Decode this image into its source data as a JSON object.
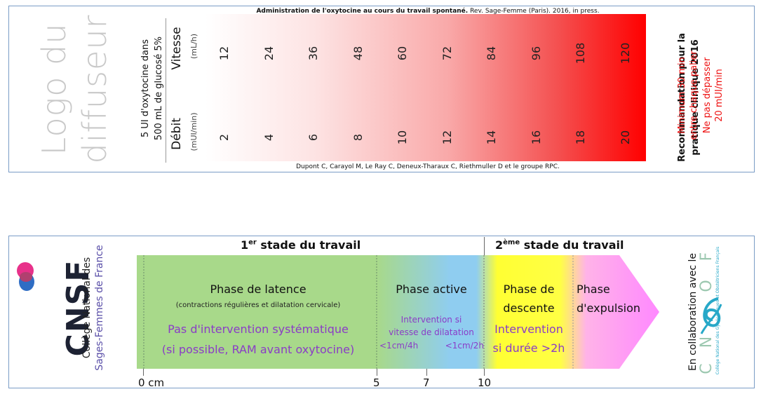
{
  "top_ruler": {
    "header_bold": "Administration de l'oxytocine au cours du travail spontané.",
    "header_rest": " Rev. Sage-Femme (Paris). 2016, in press.",
    "footer": "Dupont C, Carayol M, Le Ray C, Deneux-Tharaux C, Riethmuller D et le groupe RPC.",
    "logo_placeholder": [
      "Logo du",
      "diffuseur"
    ],
    "solution_label": [
      "5 UI d'oxytocine dans",
      "500 mL de glucosé 5%"
    ],
    "rate_label": "Vitesse",
    "rate_unit": "(mL/h)",
    "dose_label": "Débit",
    "dose_unit": "(mUI/min)",
    "rates": [
      "12",
      "24",
      "36",
      "48",
      "60",
      "72",
      "84",
      "96",
      "108",
      "120"
    ],
    "doses": [
      "2",
      "4",
      "6",
      "8",
      "10",
      "12",
      "14",
      "16",
      "18",
      "20"
    ],
    "recommendation": [
      "Recommandation pour la",
      "pratique clinique 2016"
    ],
    "red_notes": [
      "Minimum 30 min",
      "entre chaque palier",
      "Ne pas dépasser",
      "20 mUI/min"
    ],
    "colors": {
      "gradient_start": "#ffffff",
      "gradient_end": "#ff0000",
      "warning": "#ee1111"
    }
  },
  "bottom_ruler": {
    "org_acronym": "CNSF",
    "org_name_line1": "Collège National des",
    "org_name_line2": "Sages-Femmes de France",
    "stage1_title_prefix": "1",
    "stage1_title_sup": "er",
    "stage1_title_rest": " stade du travail",
    "stage2_title_prefix": "2",
    "stage2_title_sup": "ème",
    "stage2_title_rest": " stade du travail",
    "latence": {
      "title": "Phase de latence",
      "subtitle": "(contractions régulières et dilatation cervicale)",
      "purple_line1": "Pas d'intervention systématique",
      "purple_line2": "(si possible, RAM avant oxytocine)"
    },
    "active": {
      "title": "Phase active",
      "purple_line1": "Intervention si",
      "purple_line2": "vitesse de dilatation",
      "purple_left": "<1cm/4h",
      "purple_right": "<1cm/2h"
    },
    "descente": {
      "title_line1": "Phase de",
      "title_line2": "descente",
      "purple_line1": "Intervention",
      "purple_line2": "si durée >2h"
    },
    "expulsion": {
      "title_line1": "Phase",
      "title_line2": "d'expulsion"
    },
    "ticks": [
      "0 cm",
      "5",
      "7",
      "10"
    ],
    "collaboration": "En collaboration avec le",
    "partner_letters": [
      "C",
      "N",
      "G",
      "O",
      "F"
    ],
    "partner_fullname": "Collège National des Gynécologues et Obstétriciens Français",
    "colors": {
      "latence": "#a8d98a",
      "active": "#8fcdf0",
      "descente": "#ffff33",
      "expulsion": "#ff88ff",
      "purple": "#8a3cc7",
      "brand_dark": "#1d2233",
      "brand_pink": "#e8318a",
      "brand_blue": "#2f6dc4",
      "cngof": "#27a8c8"
    }
  }
}
